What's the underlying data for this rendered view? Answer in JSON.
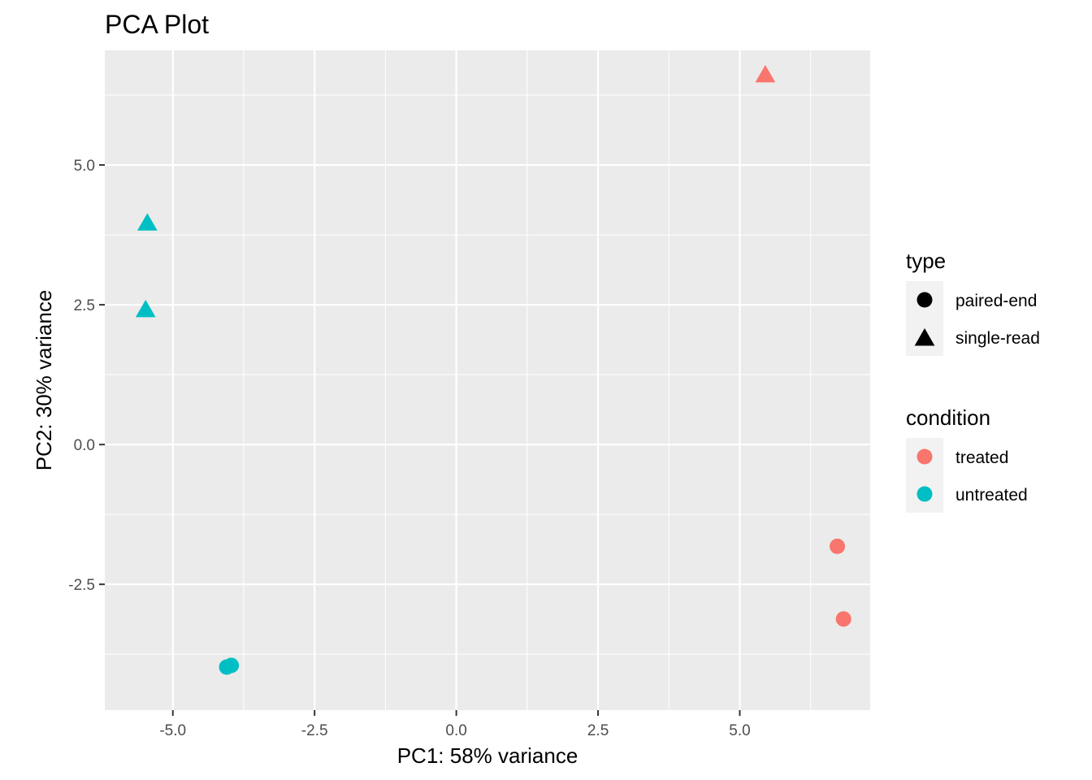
{
  "chart_data": {
    "type": "scatter",
    "title": "PCA Plot",
    "xlabel": "PC1: 58% variance",
    "ylabel": "PC2: 30% variance",
    "xlim": [
      -6.2,
      7.3
    ],
    "ylim": [
      -4.75,
      7.05
    ],
    "x_ticks": [
      -5.0,
      -2.5,
      0.0,
      2.5,
      5.0
    ],
    "x_tick_labels": [
      "-5.0",
      "-2.5",
      "0.0",
      "2.5",
      "5.0"
    ],
    "y_ticks": [
      -2.5,
      0.0,
      2.5,
      5.0
    ],
    "y_tick_labels": [
      "-2.5",
      "0.0",
      "2.5",
      "5.0"
    ],
    "grid": true,
    "background": "#ebebeb",
    "gridline_color": "#ffffff",
    "legend_placement": "right",
    "legends": [
      {
        "title": "type",
        "entries": [
          {
            "label": "paired-end",
            "shape": "circle"
          },
          {
            "label": "single-read",
            "shape": "triangle"
          }
        ]
      },
      {
        "title": "condition",
        "entries": [
          {
            "label": "treated",
            "color": "#f8766d"
          },
          {
            "label": "untreated",
            "color": "#00bfc4"
          }
        ]
      }
    ],
    "points": [
      {
        "x": 5.45,
        "y": 6.6,
        "type": "single-read",
        "condition": "treated"
      },
      {
        "x": -5.45,
        "y": 3.95,
        "type": "single-read",
        "condition": "untreated"
      },
      {
        "x": -5.48,
        "y": 2.4,
        "type": "single-read",
        "condition": "untreated"
      },
      {
        "x": 6.72,
        "y": -1.82,
        "type": "paired-end",
        "condition": "treated"
      },
      {
        "x": 6.83,
        "y": -3.12,
        "type": "paired-end",
        "condition": "treated"
      },
      {
        "x": -4.05,
        "y": -3.98,
        "type": "paired-end",
        "condition": "untreated"
      },
      {
        "x": -3.97,
        "y": -3.95,
        "type": "paired-end",
        "condition": "untreated"
      }
    ]
  }
}
